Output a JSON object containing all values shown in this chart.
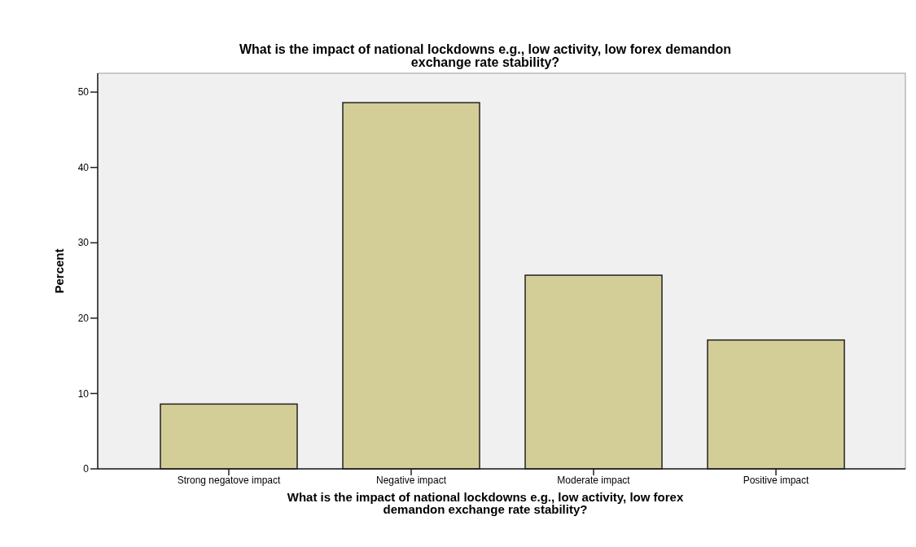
{
  "chart_data": {
    "type": "bar",
    "title": "What is the impact of national lockdowns e.g., low activity, low forex demandon exchange rate stability?",
    "xlabel": "What is the impact of national lockdowns e.g., low activity, low forex demandon exchange rate stability?",
    "ylabel": "Percent",
    "categories": [
      "Strong negatove impact",
      "Negative impact",
      "Moderate impact",
      "Positive impact"
    ],
    "values": [
      8.6,
      48.6,
      25.7,
      17.1
    ],
    "color": "#d3ce98",
    "ylim": [
      0,
      52.5
    ],
    "yticks": [
      0,
      10,
      20,
      30,
      40,
      50
    ],
    "grid": false
  }
}
